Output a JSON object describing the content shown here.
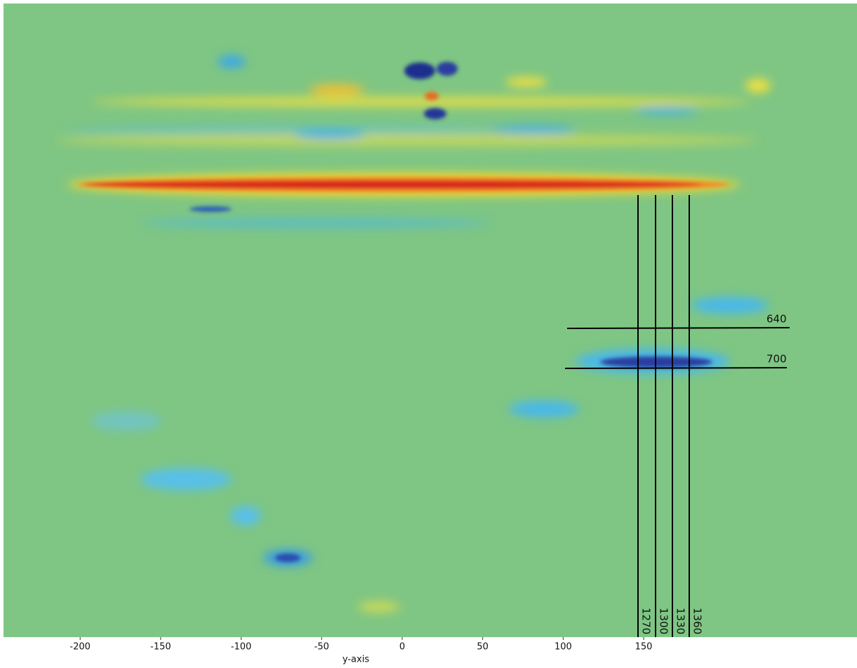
{
  "chart_data": {
    "type": "heatmap",
    "xlabel": "y-axis",
    "xlim": [
      -247.6,
      282.5
    ],
    "xticks": [
      -200,
      -150,
      -100,
      -50,
      0,
      50,
      100,
      150
    ],
    "vertical_markers": [
      "1270",
      "1300",
      "1330",
      "1360"
    ],
    "horizontal_markers": [
      "640",
      "700"
    ]
  }
}
